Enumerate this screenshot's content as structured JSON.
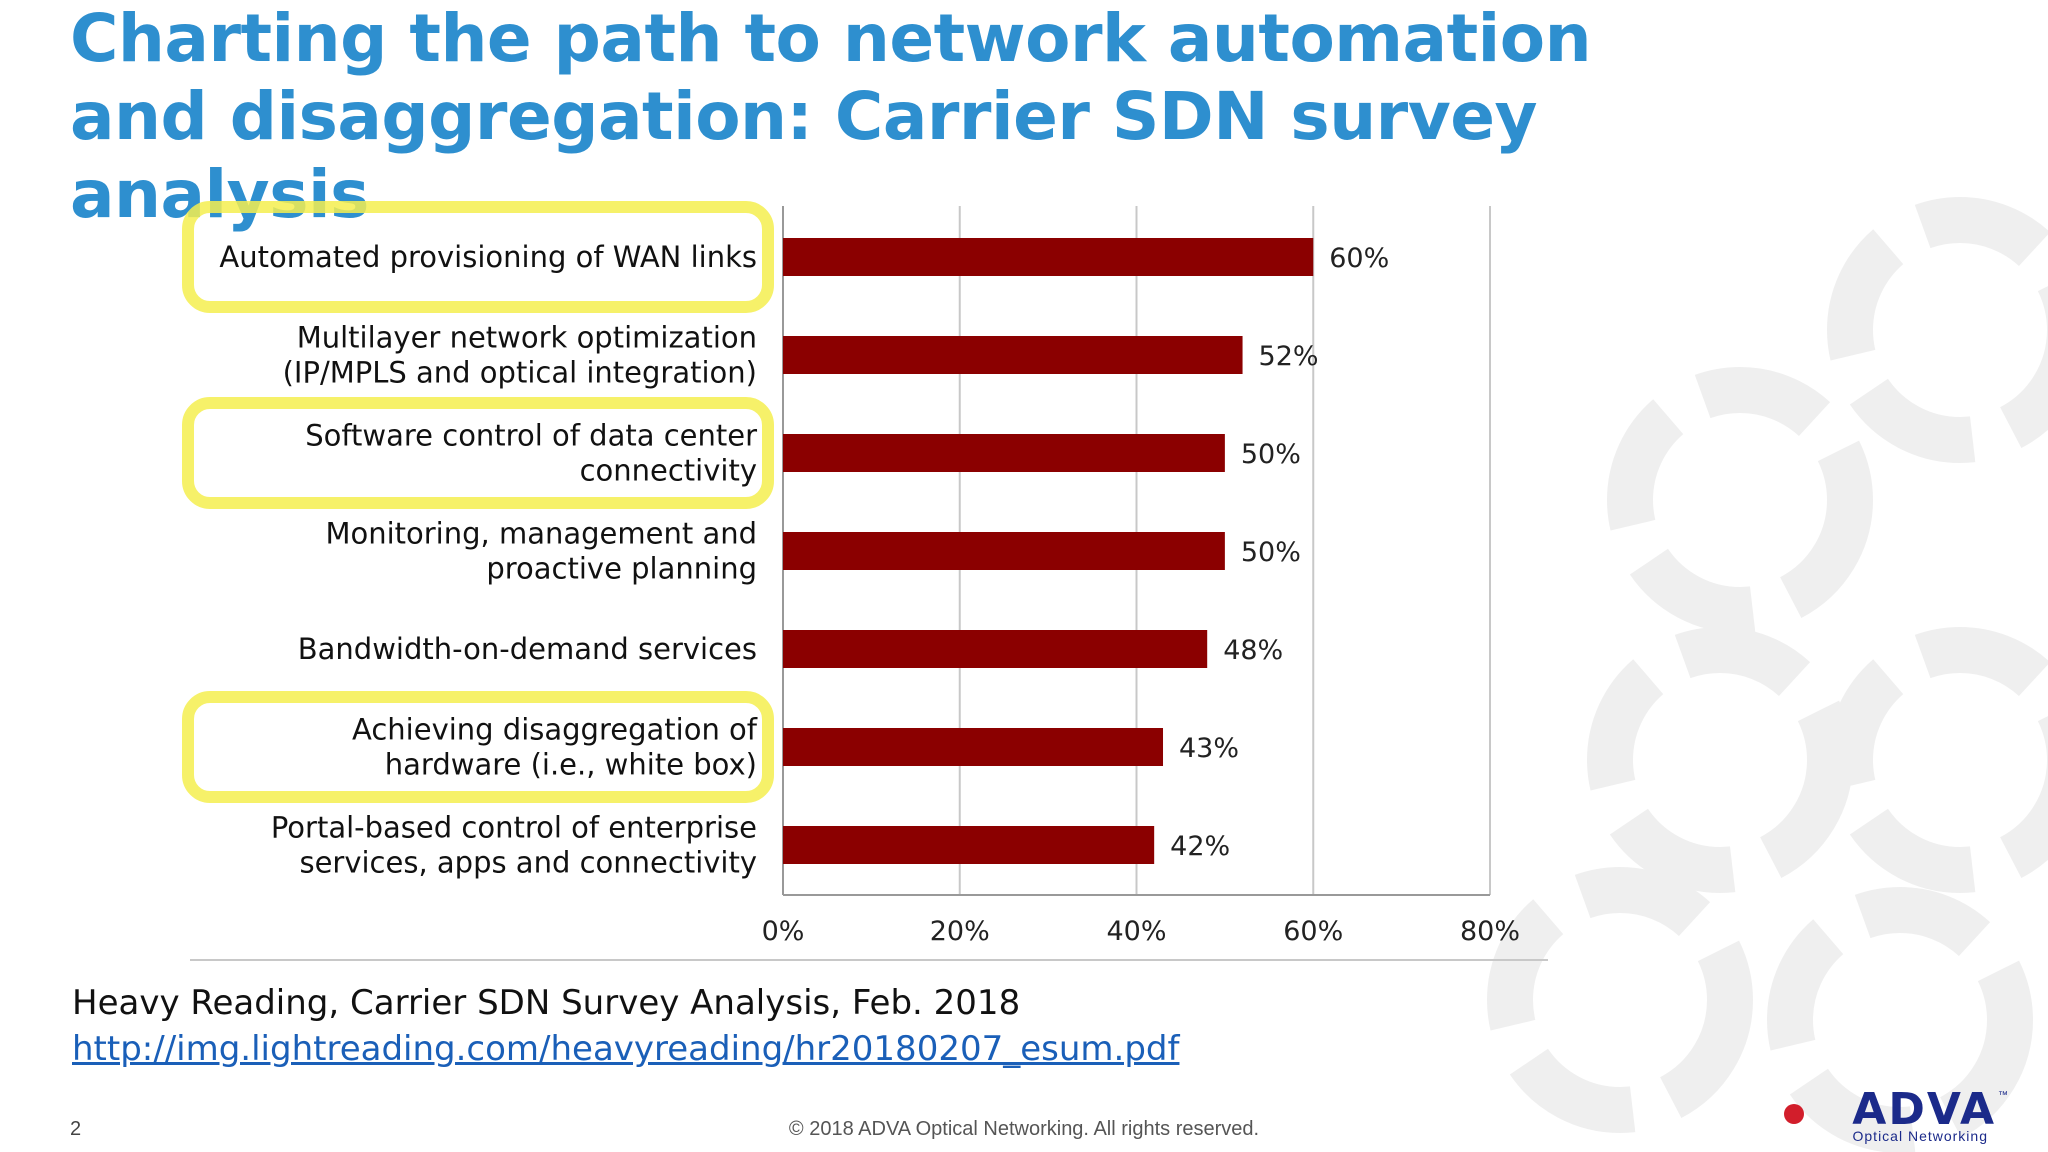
{
  "slide": {
    "title": "Charting the path to network automation and disaggregation: Carrier SDN survey analysis",
    "source_text": "Heavy Reading, Carrier SDN Survey Analysis, Feb. 2018",
    "source_link": "http://img.lightreading.com/heavyreading/hr20180207_esum.pdf",
    "page_number": "2",
    "copyright": "© 2018 ADVA Optical Networking. All rights reserved.",
    "logo_name": "ADVA",
    "logo_tagline": "Optical Networking",
    "logo_tm": "™"
  },
  "colors": {
    "title": "#2e8fcf",
    "bar": "#8b0000",
    "highlight": "#f5ef4f",
    "link": "#1a5fb8"
  },
  "chart_data": {
    "type": "bar",
    "orientation": "horizontal",
    "categories": [
      [
        "Automated provisioning of WAN links"
      ],
      [
        "Multilayer network optimization",
        "(IP/MPLS and optical integration)"
      ],
      [
        "Software control of data center",
        "connectivity"
      ],
      [
        "Monitoring, management and",
        "proactive planning"
      ],
      [
        "Bandwidth-on-demand services"
      ],
      [
        "Achieving disaggregation of",
        "hardware (i.e., white box)"
      ],
      [
        "Portal-based control of enterprise",
        "services, apps and connectivity"
      ]
    ],
    "values": [
      60,
      52,
      50,
      50,
      48,
      43,
      42
    ],
    "value_labels": [
      "60%",
      "52%",
      "50%",
      "50%",
      "48%",
      "43%",
      "42%"
    ],
    "highlighted": [
      true,
      false,
      true,
      false,
      false,
      true,
      false
    ],
    "xlim": [
      0,
      80
    ],
    "xticks": [
      0,
      20,
      40,
      60,
      80
    ],
    "xtick_labels": [
      "0%",
      "20%",
      "40%",
      "60%",
      "80%"
    ],
    "grid": true
  }
}
